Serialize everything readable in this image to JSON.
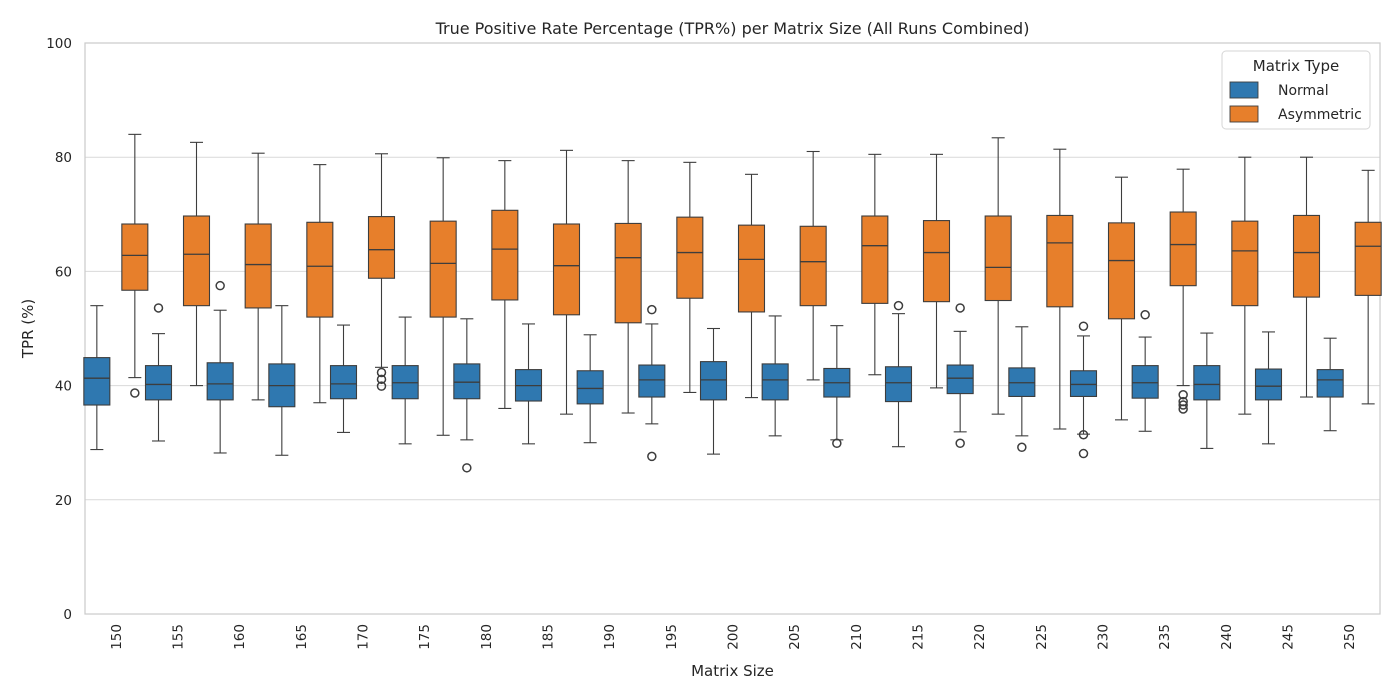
{
  "chart_data": {
    "type": "box",
    "title": "True Positive Rate Percentage (TPR%) per Matrix Size (All Runs Combined)",
    "xlabel": "Matrix Size",
    "ylabel": "TPR (%)",
    "ylim": [
      0,
      100
    ],
    "yticks": [
      0,
      20,
      40,
      60,
      80,
      100
    ],
    "grid": "horizontal",
    "legend": {
      "title": "Matrix Type",
      "position": "top-right"
    },
    "categories": [
      "150",
      "155",
      "160",
      "165",
      "170",
      "175",
      "180",
      "185",
      "190",
      "195",
      "200",
      "205",
      "210",
      "215",
      "220",
      "225",
      "230",
      "235",
      "240",
      "245",
      "250"
    ],
    "series": [
      {
        "name": "Normal",
        "color": "#2f78b0",
        "boxes": [
          {
            "whislo": 28.8,
            "q1": 36.6,
            "med": 41.3,
            "q3": 44.9,
            "whishi": 54.0,
            "fliers": []
          },
          {
            "whislo": 30.3,
            "q1": 37.5,
            "med": 40.2,
            "q3": 43.5,
            "whishi": 49.1,
            "fliers": [
              53.6
            ]
          },
          {
            "whislo": 28.2,
            "q1": 37.5,
            "med": 40.3,
            "q3": 44.0,
            "whishi": 53.2,
            "fliers": [
              57.5
            ]
          },
          {
            "whislo": 27.8,
            "q1": 36.3,
            "med": 40.0,
            "q3": 43.8,
            "whishi": 54.0,
            "fliers": []
          },
          {
            "whislo": 31.8,
            "q1": 37.7,
            "med": 40.3,
            "q3": 43.5,
            "whishi": 50.6,
            "fliers": []
          },
          {
            "whislo": 29.8,
            "q1": 37.7,
            "med": 40.5,
            "q3": 43.5,
            "whishi": 52.0,
            "fliers": []
          },
          {
            "whislo": 30.5,
            "q1": 37.7,
            "med": 40.6,
            "q3": 43.8,
            "whishi": 51.7,
            "fliers": [
              25.6
            ]
          },
          {
            "whislo": 29.8,
            "q1": 37.3,
            "med": 40.0,
            "q3": 42.8,
            "whishi": 50.8,
            "fliers": []
          },
          {
            "whislo": 30.0,
            "q1": 36.8,
            "med": 39.5,
            "q3": 42.6,
            "whishi": 48.9,
            "fliers": []
          },
          {
            "whislo": 33.3,
            "q1": 38.0,
            "med": 41.0,
            "q3": 43.6,
            "whishi": 50.8,
            "fliers": [
              53.3,
              27.6
            ]
          },
          {
            "whislo": 28.0,
            "q1": 37.5,
            "med": 41.0,
            "q3": 44.2,
            "whishi": 50.0,
            "fliers": []
          },
          {
            "whislo": 31.2,
            "q1": 37.5,
            "med": 41.0,
            "q3": 43.8,
            "whishi": 52.2,
            "fliers": []
          },
          {
            "whislo": 30.5,
            "q1": 38.0,
            "med": 40.5,
            "q3": 43.0,
            "whishi": 50.5,
            "fliers": [
              29.9
            ]
          },
          {
            "whislo": 29.3,
            "q1": 37.2,
            "med": 40.5,
            "q3": 43.3,
            "whishi": 52.6,
            "fliers": [
              54.0
            ]
          },
          {
            "whislo": 31.9,
            "q1": 38.6,
            "med": 41.3,
            "q3": 43.6,
            "whishi": 49.5,
            "fliers": [
              53.6,
              29.9
            ]
          },
          {
            "whislo": 31.2,
            "q1": 38.1,
            "med": 40.5,
            "q3": 43.1,
            "whishi": 50.3,
            "fliers": [
              29.2
            ]
          },
          {
            "whislo": 31.5,
            "q1": 38.1,
            "med": 40.2,
            "q3": 42.6,
            "whishi": 48.7,
            "fliers": [
              50.4,
              31.4,
              28.1
            ]
          },
          {
            "whislo": 32.0,
            "q1": 37.8,
            "med": 40.5,
            "q3": 43.5,
            "whishi": 48.5,
            "fliers": [
              52.4
            ]
          },
          {
            "whislo": 29.0,
            "q1": 37.5,
            "med": 40.2,
            "q3": 43.5,
            "whishi": 49.2,
            "fliers": []
          },
          {
            "whislo": 29.8,
            "q1": 37.5,
            "med": 39.9,
            "q3": 42.9,
            "whishi": 49.4,
            "fliers": []
          },
          {
            "whislo": 32.1,
            "q1": 38.0,
            "med": 41.0,
            "q3": 42.8,
            "whishi": 48.3,
            "fliers": []
          }
        ]
      },
      {
        "name": "Asymmetric",
        "color": "#e77f2b",
        "boxes": [
          {
            "whislo": 41.4,
            "q1": 56.7,
            "med": 62.8,
            "q3": 68.3,
            "whishi": 84.0,
            "fliers": [
              38.7
            ]
          },
          {
            "whislo": 40.0,
            "q1": 54.0,
            "med": 63.0,
            "q3": 69.7,
            "whishi": 82.6,
            "fliers": []
          },
          {
            "whislo": 37.5,
            "q1": 53.6,
            "med": 61.2,
            "q3": 68.3,
            "whishi": 80.7,
            "fliers": []
          },
          {
            "whislo": 37.0,
            "q1": 52.0,
            "med": 60.9,
            "q3": 68.6,
            "whishi": 78.7,
            "fliers": []
          },
          {
            "whislo": 43.2,
            "q1": 58.8,
            "med": 63.8,
            "q3": 69.6,
            "whishi": 80.6,
            "fliers": [
              42.3,
              41.1,
              39.9
            ]
          },
          {
            "whislo": 31.3,
            "q1": 52.0,
            "med": 61.4,
            "q3": 68.8,
            "whishi": 79.9,
            "fliers": []
          },
          {
            "whislo": 36.0,
            "q1": 55.0,
            "med": 63.9,
            "q3": 70.7,
            "whishi": 79.4,
            "fliers": []
          },
          {
            "whislo": 35.0,
            "q1": 52.4,
            "med": 61.0,
            "q3": 68.3,
            "whishi": 81.2,
            "fliers": []
          },
          {
            "whislo": 35.2,
            "q1": 51.0,
            "med": 62.4,
            "q3": 68.4,
            "whishi": 79.4,
            "fliers": []
          },
          {
            "whislo": 38.8,
            "q1": 55.3,
            "med": 63.3,
            "q3": 69.5,
            "whishi": 79.1,
            "fliers": []
          },
          {
            "whislo": 37.9,
            "q1": 52.9,
            "med": 62.1,
            "q3": 68.1,
            "whishi": 77.0,
            "fliers": []
          },
          {
            "whislo": 41.0,
            "q1": 54.0,
            "med": 61.7,
            "q3": 67.9,
            "whishi": 81.0,
            "fliers": []
          },
          {
            "whislo": 41.9,
            "q1": 54.4,
            "med": 64.5,
            "q3": 69.7,
            "whishi": 80.5,
            "fliers": []
          },
          {
            "whislo": 39.6,
            "q1": 54.7,
            "med": 63.3,
            "q3": 68.9,
            "whishi": 80.5,
            "fliers": []
          },
          {
            "whislo": 35.0,
            "q1": 54.9,
            "med": 60.7,
            "q3": 69.7,
            "whishi": 83.4,
            "fliers": []
          },
          {
            "whislo": 32.4,
            "q1": 53.8,
            "med": 65.0,
            "q3": 69.8,
            "whishi": 81.4,
            "fliers": []
          },
          {
            "whislo": 34.0,
            "q1": 51.7,
            "med": 61.9,
            "q3": 68.5,
            "whishi": 76.5,
            "fliers": []
          },
          {
            "whislo": 40.0,
            "q1": 57.5,
            "med": 64.7,
            "q3": 70.4,
            "whishi": 77.9,
            "fliers": [
              38.4,
              37.2,
              36.6,
              35.9
            ]
          },
          {
            "whislo": 35.0,
            "q1": 54.0,
            "med": 63.6,
            "q3": 68.8,
            "whishi": 80.0,
            "fliers": []
          },
          {
            "whislo": 38.0,
            "q1": 55.5,
            "med": 63.3,
            "q3": 69.8,
            "whishi": 80.0,
            "fliers": []
          },
          {
            "whislo": 36.8,
            "q1": 55.8,
            "med": 64.4,
            "q3": 68.6,
            "whishi": 77.7,
            "fliers": []
          }
        ]
      }
    ]
  }
}
